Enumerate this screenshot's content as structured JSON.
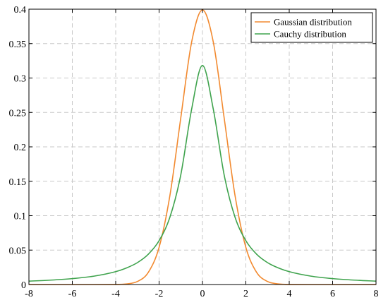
{
  "chart_data": {
    "type": "line",
    "title": "",
    "xlabel": "",
    "ylabel": "",
    "xlim": [
      -8,
      8
    ],
    "ylim": [
      0,
      0.4
    ],
    "x_ticks": [
      -8,
      -6,
      -4,
      -2,
      0,
      2,
      4,
      6,
      8
    ],
    "y_ticks": [
      0,
      0.05,
      0.1,
      0.15,
      0.2,
      0.25,
      0.3,
      0.35,
      0.4
    ],
    "x_tick_labels": [
      "-8",
      "-6",
      "-4",
      "-2",
      "0",
      "2",
      "4",
      "6",
      "8"
    ],
    "y_tick_labels": [
      "0",
      "0.05",
      "0.1",
      "0.15",
      "0.2",
      "0.25",
      "0.3",
      "0.35",
      "0.4"
    ],
    "grid": true,
    "grid_style": "dashed",
    "legend_position": "top-right",
    "x": [
      -8,
      -7,
      -6,
      -5,
      -4,
      -3.5,
      -3,
      -2.5,
      -2,
      -1.5,
      -1,
      -0.5,
      0,
      0.5,
      1,
      1.5,
      2,
      2.5,
      3,
      3.5,
      4,
      5,
      6,
      7,
      8
    ],
    "series": [
      {
        "name": "Gaussian distribution",
        "color": "#f28a30",
        "values": [
          0,
          0,
          0,
          0,
          0.0001,
          0.0009,
          0.0044,
          0.0175,
          0.054,
          0.1295,
          0.242,
          0.3521,
          0.3989,
          0.3521,
          0.242,
          0.1295,
          0.054,
          0.0175,
          0.0044,
          0.0009,
          0.0001,
          0,
          0,
          0,
          0
        ]
      },
      {
        "name": "Cauchy distribution",
        "color": "#3fa34d",
        "values": [
          0.0049,
          0.0064,
          0.0086,
          0.0122,
          0.0187,
          0.0241,
          0.0318,
          0.0439,
          0.0637,
          0.0979,
          0.1592,
          0.2546,
          0.3183,
          0.2546,
          0.1592,
          0.0979,
          0.0637,
          0.0439,
          0.0318,
          0.0241,
          0.0187,
          0.0122,
          0.0086,
          0.0064,
          0.0049
        ]
      }
    ]
  }
}
